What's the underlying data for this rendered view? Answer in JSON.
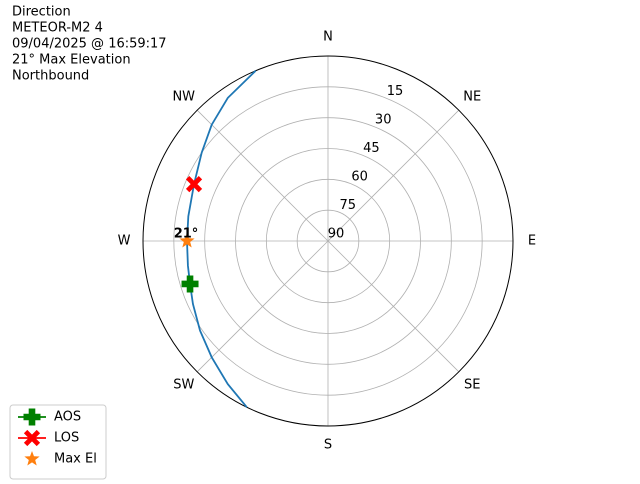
{
  "chart_data": {
    "type": "polar",
    "title": [
      "Direction",
      "METEOR-M2 4",
      "09/04/2025 @ 16:59:17",
      "21° Max Elevation",
      "Northbound"
    ],
    "rlim": [
      90,
      0
    ],
    "rticks": [
      15,
      30,
      45,
      60,
      75,
      90
    ],
    "thetaticks": [
      {
        "value": 0,
        "label": "N"
      },
      {
        "value": 45,
        "label": "NE"
      },
      {
        "value": 90,
        "label": "E"
      },
      {
        "value": 135,
        "label": "SE"
      },
      {
        "value": 180,
        "label": "S"
      },
      {
        "value": 225,
        "label": "SW"
      },
      {
        "value": 270,
        "label": "W"
      },
      {
        "value": 315,
        "label": "NW"
      }
    ],
    "grid": true,
    "legend": "lower left",
    "annotation": "21°",
    "series": [
      {
        "kind": "line",
        "color": "#1f77b4",
        "theta": [
          206,
          215,
          225,
          235,
          245,
          252.7,
          260,
          270,
          280,
          293,
          305,
          315,
          325,
          337
        ],
        "values": [
          0,
          5,
          10,
          14,
          17.5,
          19.7,
          20.8,
          21.4,
          21,
          19.2,
          15,
          10,
          5,
          0
        ]
      },
      {
        "kind": "marker",
        "name": "AOS",
        "marker": "plus",
        "color": "#008000",
        "theta": [
          252.7
        ],
        "values": [
          19.7
        ]
      },
      {
        "kind": "marker",
        "name": "LOS",
        "marker": "x",
        "color": "#ff0000",
        "theta": [
          293
        ],
        "values": [
          19.2
        ]
      },
      {
        "kind": "marker",
        "name": "Max El",
        "marker": "star",
        "color": "#ff7f0e",
        "theta": [
          270
        ],
        "values": [
          21.4
        ]
      }
    ]
  }
}
